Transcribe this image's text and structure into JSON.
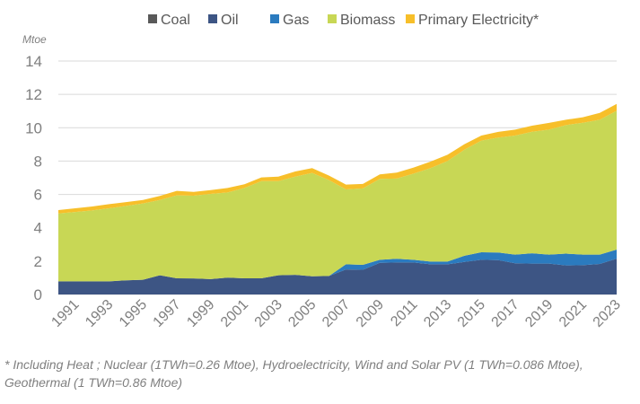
{
  "chart_data": {
    "type": "area",
    "stacked": true,
    "title": "",
    "ylabel": "Mtoe",
    "xlabel": "",
    "ylim": [
      0,
      14
    ],
    "yticks": [
      0,
      2,
      4,
      6,
      8,
      10,
      12,
      14
    ],
    "grid": true,
    "legend_position": "top",
    "x": [
      1990,
      1991,
      1992,
      1993,
      1994,
      1995,
      1996,
      1997,
      1998,
      1999,
      2000,
      2001,
      2002,
      2003,
      2004,
      2005,
      2006,
      2007,
      2008,
      2009,
      2010,
      2011,
      2012,
      2013,
      2014,
      2015,
      2016,
      2017,
      2018,
      2019,
      2020,
      2021,
      2022,
      2023
    ],
    "xtick_labels": [
      "1991",
      "1993",
      "1995",
      "1997",
      "1999",
      "2001",
      "2003",
      "2005",
      "2007",
      "2009",
      "2011",
      "2013",
      "2015",
      "2017",
      "2019",
      "2021",
      "2023"
    ],
    "series": [
      {
        "name": "Coal",
        "color": "#595959",
        "values": [
          0,
          0,
          0,
          0,
          0,
          0,
          0,
          0,
          0,
          0,
          0,
          0,
          0,
          0,
          0,
          0,
          0,
          0,
          0,
          0,
          0,
          0,
          0,
          0,
          0,
          0,
          0,
          0,
          0,
          0,
          0,
          0,
          0,
          0
        ]
      },
      {
        "name": "Oil",
        "color": "#3d5584",
        "values": [
          0.79,
          0.79,
          0.79,
          0.79,
          0.85,
          0.88,
          1.15,
          0.97,
          0.96,
          0.92,
          1.01,
          0.97,
          0.97,
          1.15,
          1.18,
          1.09,
          1.11,
          1.5,
          1.48,
          1.9,
          1.92,
          1.92,
          1.81,
          1.81,
          1.95,
          2.08,
          2.06,
          1.87,
          1.85,
          1.85,
          1.74,
          1.76,
          1.83,
          2.15
        ]
      },
      {
        "name": "Gas",
        "color": "#2b7bbf",
        "values": [
          0,
          0,
          0,
          0,
          0,
          0,
          0,
          0,
          0,
          0,
          0,
          0,
          0,
          0,
          0,
          0,
          0,
          0.31,
          0.3,
          0.18,
          0.22,
          0.16,
          0.16,
          0.16,
          0.37,
          0.45,
          0.46,
          0.52,
          0.62,
          0.54,
          0.71,
          0.63,
          0.56,
          0.54
        ]
      },
      {
        "name": "Biomass",
        "color": "#c8d755",
        "values": [
          4.07,
          4.16,
          4.25,
          4.38,
          4.46,
          4.58,
          4.52,
          4.97,
          4.96,
          5.11,
          5.11,
          5.42,
          5.83,
          5.65,
          5.89,
          6.2,
          5.75,
          4.49,
          4.58,
          4.85,
          4.81,
          5.17,
          5.61,
          6.03,
          6.36,
          6.7,
          6.89,
          7.14,
          7.29,
          7.5,
          7.71,
          7.91,
          8.09,
          8.33
        ]
      },
      {
        "name": "Primary Electricity*",
        "color": "#f7bf2a",
        "values": [
          0.2,
          0.22,
          0.24,
          0.25,
          0.23,
          0.21,
          0.24,
          0.27,
          0.23,
          0.23,
          0.27,
          0.22,
          0.22,
          0.27,
          0.31,
          0.29,
          0.27,
          0.29,
          0.27,
          0.27,
          0.36,
          0.36,
          0.39,
          0.38,
          0.33,
          0.3,
          0.34,
          0.36,
          0.36,
          0.4,
          0.32,
          0.33,
          0.41,
          0.41
        ]
      }
    ]
  },
  "footnote": {
    "line1": "* Including Heat ; Nuclear (1TWh=0.26 Mtoe), Hydroelectricity, Wind and Solar PV (1 TWh=0.086 Mtoe),",
    "line2": "Geothermal (1 TWh=0.86 Mtoe)"
  }
}
